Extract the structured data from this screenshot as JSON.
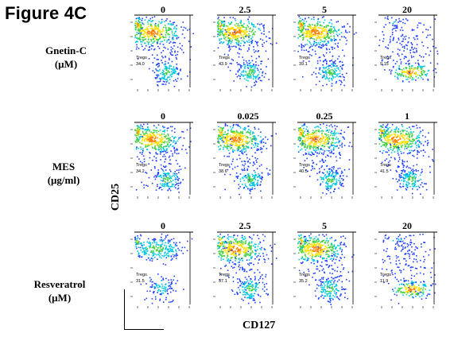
{
  "figure_title": "Figure 4C",
  "axis_x_label": "CD127",
  "axis_y_label": "CD25",
  "gate_label": "Tregs",
  "rows": [
    {
      "label_lines": [
        "Gnetin-C",
        "(μM)"
      ],
      "panels": [
        {
          "conc": "0",
          "value": "34.0",
          "profile": "normal"
        },
        {
          "conc": "2.5",
          "value": "43.9",
          "profile": "normal"
        },
        {
          "conc": "5",
          "value": "39.1",
          "profile": "normal"
        },
        {
          "conc": "20",
          "value": "9.15",
          "profile": "sparse"
        }
      ]
    },
    {
      "label_lines": [
        "MES",
        "(μg/ml)"
      ],
      "panels": [
        {
          "conc": "0",
          "value": "34.2",
          "profile": "normal"
        },
        {
          "conc": "0.025",
          "value": "38.6",
          "profile": "normal"
        },
        {
          "conc": "0.25",
          "value": "40.5",
          "profile": "normal"
        },
        {
          "conc": "1",
          "value": "41.5",
          "profile": "normal"
        }
      ]
    },
    {
      "label_lines": [
        "Resveratrol",
        "(μM)"
      ],
      "panels": [
        {
          "conc": "0",
          "value": "31.5",
          "profile": "light"
        },
        {
          "conc": "2.5",
          "value": "37.1",
          "profile": "normal"
        },
        {
          "conc": "5",
          "value": "35.2",
          "profile": "normal"
        },
        {
          "conc": "20",
          "value": "11.9",
          "profile": "sparse"
        }
      ]
    }
  ],
  "colors": {
    "hot": "#ff7f00",
    "warm": "#ffe000",
    "mid": "#40d040",
    "cool": "#00c8e0",
    "cold": "#2040ff",
    "gate_line": "#000000"
  }
}
